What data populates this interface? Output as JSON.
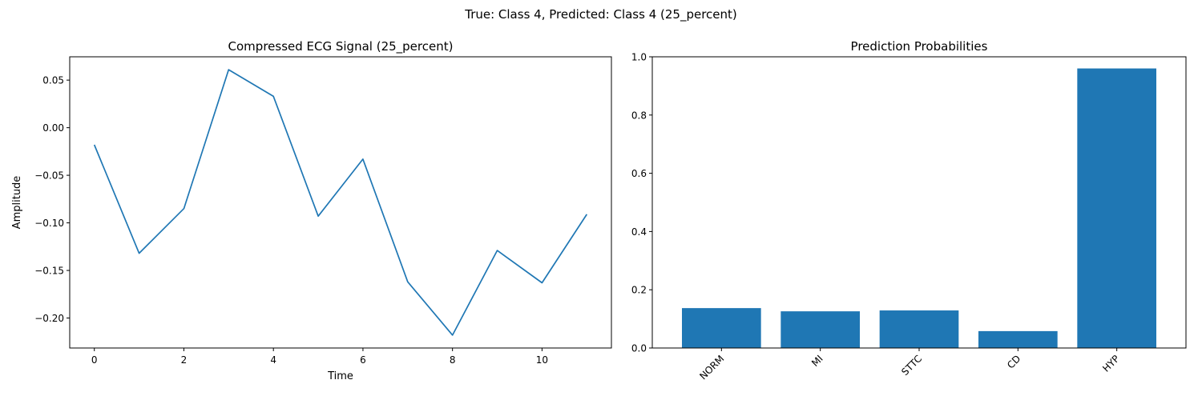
{
  "suptitle": "True: Class 4, Predicted: Class 4 (25_percent)",
  "chart_data": [
    {
      "type": "line",
      "title": "Compressed ECG Signal (25_percent)",
      "xlabel": "Time",
      "ylabel": "Amplitude",
      "x": [
        0,
        1,
        2,
        3,
        4,
        5,
        6,
        7,
        8,
        9,
        10,
        11
      ],
      "series": [
        {
          "values": [
            -0.018,
            -0.132,
            -0.085,
            0.061,
            0.033,
            -0.093,
            -0.033,
            -0.162,
            -0.218,
            -0.129,
            -0.163,
            -0.091
          ]
        }
      ],
      "xlim": [
        -0.55,
        11.55
      ],
      "ylim": [
        -0.2315,
        0.0745
      ],
      "xticks": [
        0,
        2,
        4,
        6,
        8,
        10
      ],
      "xtick_labels": [
        "0",
        "2",
        "4",
        "6",
        "8",
        "10"
      ],
      "yticks": [
        -0.2,
        -0.15,
        -0.1,
        -0.05,
        0.0,
        0.05
      ],
      "ytick_labels": [
        "−0.20",
        "−0.15",
        "−0.10",
        "−0.05",
        "0.00",
        "0.05"
      ],
      "grid": false,
      "color": "#1f77b4"
    },
    {
      "type": "bar",
      "title": "Prediction Probabilities",
      "categories": [
        "NORM",
        "MI",
        "STTC",
        "CD",
        "HYP"
      ],
      "values": [
        0.137,
        0.126,
        0.129,
        0.058,
        0.96
      ],
      "ylim": [
        0,
        1.0
      ],
      "yticks": [
        0.0,
        0.2,
        0.4,
        0.6,
        0.8,
        1.0
      ],
      "ytick_labels": [
        "0.0",
        "0.2",
        "0.4",
        "0.6",
        "0.8",
        "1.0"
      ],
      "grid": false,
      "color": "#1f77b4"
    }
  ]
}
